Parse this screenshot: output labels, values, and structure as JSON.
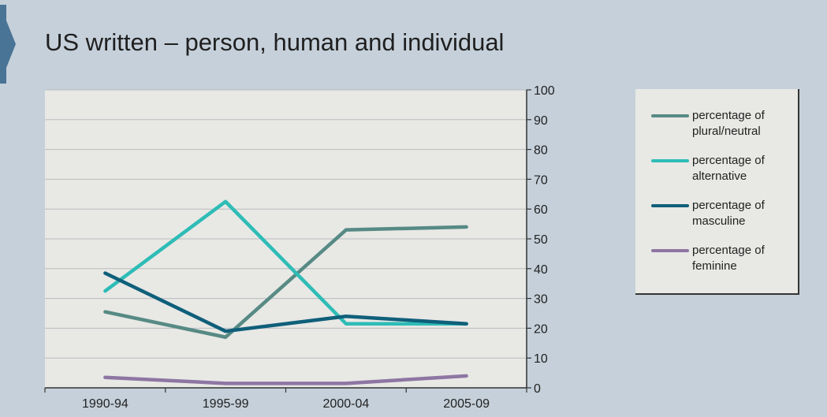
{
  "colors": {
    "background": "#c5d0da",
    "plot_area": "#e8e8e5",
    "accent": "#4a7496",
    "plural_neutral": "#578a84",
    "alternative": "#2ebcb6",
    "masculine": "#0f5f7a",
    "feminine": "#8e76a3"
  },
  "chart_data": {
    "type": "line",
    "title": "US written – person, human and individual",
    "categories": [
      "1990-94",
      "1995-99",
      "2000-04",
      "2005-09"
    ],
    "y_ticks": [
      "0",
      "10",
      "20",
      "30",
      "40",
      "50",
      "60",
      "70",
      "80",
      "90",
      "100"
    ],
    "ylim": [
      0,
      100
    ],
    "y_axis_side": "right",
    "grid": true,
    "legend_position": "right",
    "series": [
      {
        "name": "percentage of plural/neutral",
        "name_lines": [
          "percentage of",
          "plural/neutral"
        ],
        "values": [
          25.5,
          17,
          53,
          54
        ],
        "color": "#578a84"
      },
      {
        "name": "percentage of alternative",
        "name_lines": [
          "percentage of",
          "alternative"
        ],
        "values": [
          32.5,
          62.5,
          21.5,
          21.5
        ],
        "color": "#2ebcb6"
      },
      {
        "name": "percentage of masculine",
        "name_lines": [
          "percentage of",
          "masculine"
        ],
        "values": [
          38.5,
          19,
          24,
          21.5
        ],
        "color": "#0f5f7a"
      },
      {
        "name": "percentage of feminine",
        "name_lines": [
          "percentage of",
          "feminine"
        ],
        "values": [
          3.5,
          1.5,
          1.5,
          4
        ],
        "color": "#8e76a3"
      }
    ]
  }
}
